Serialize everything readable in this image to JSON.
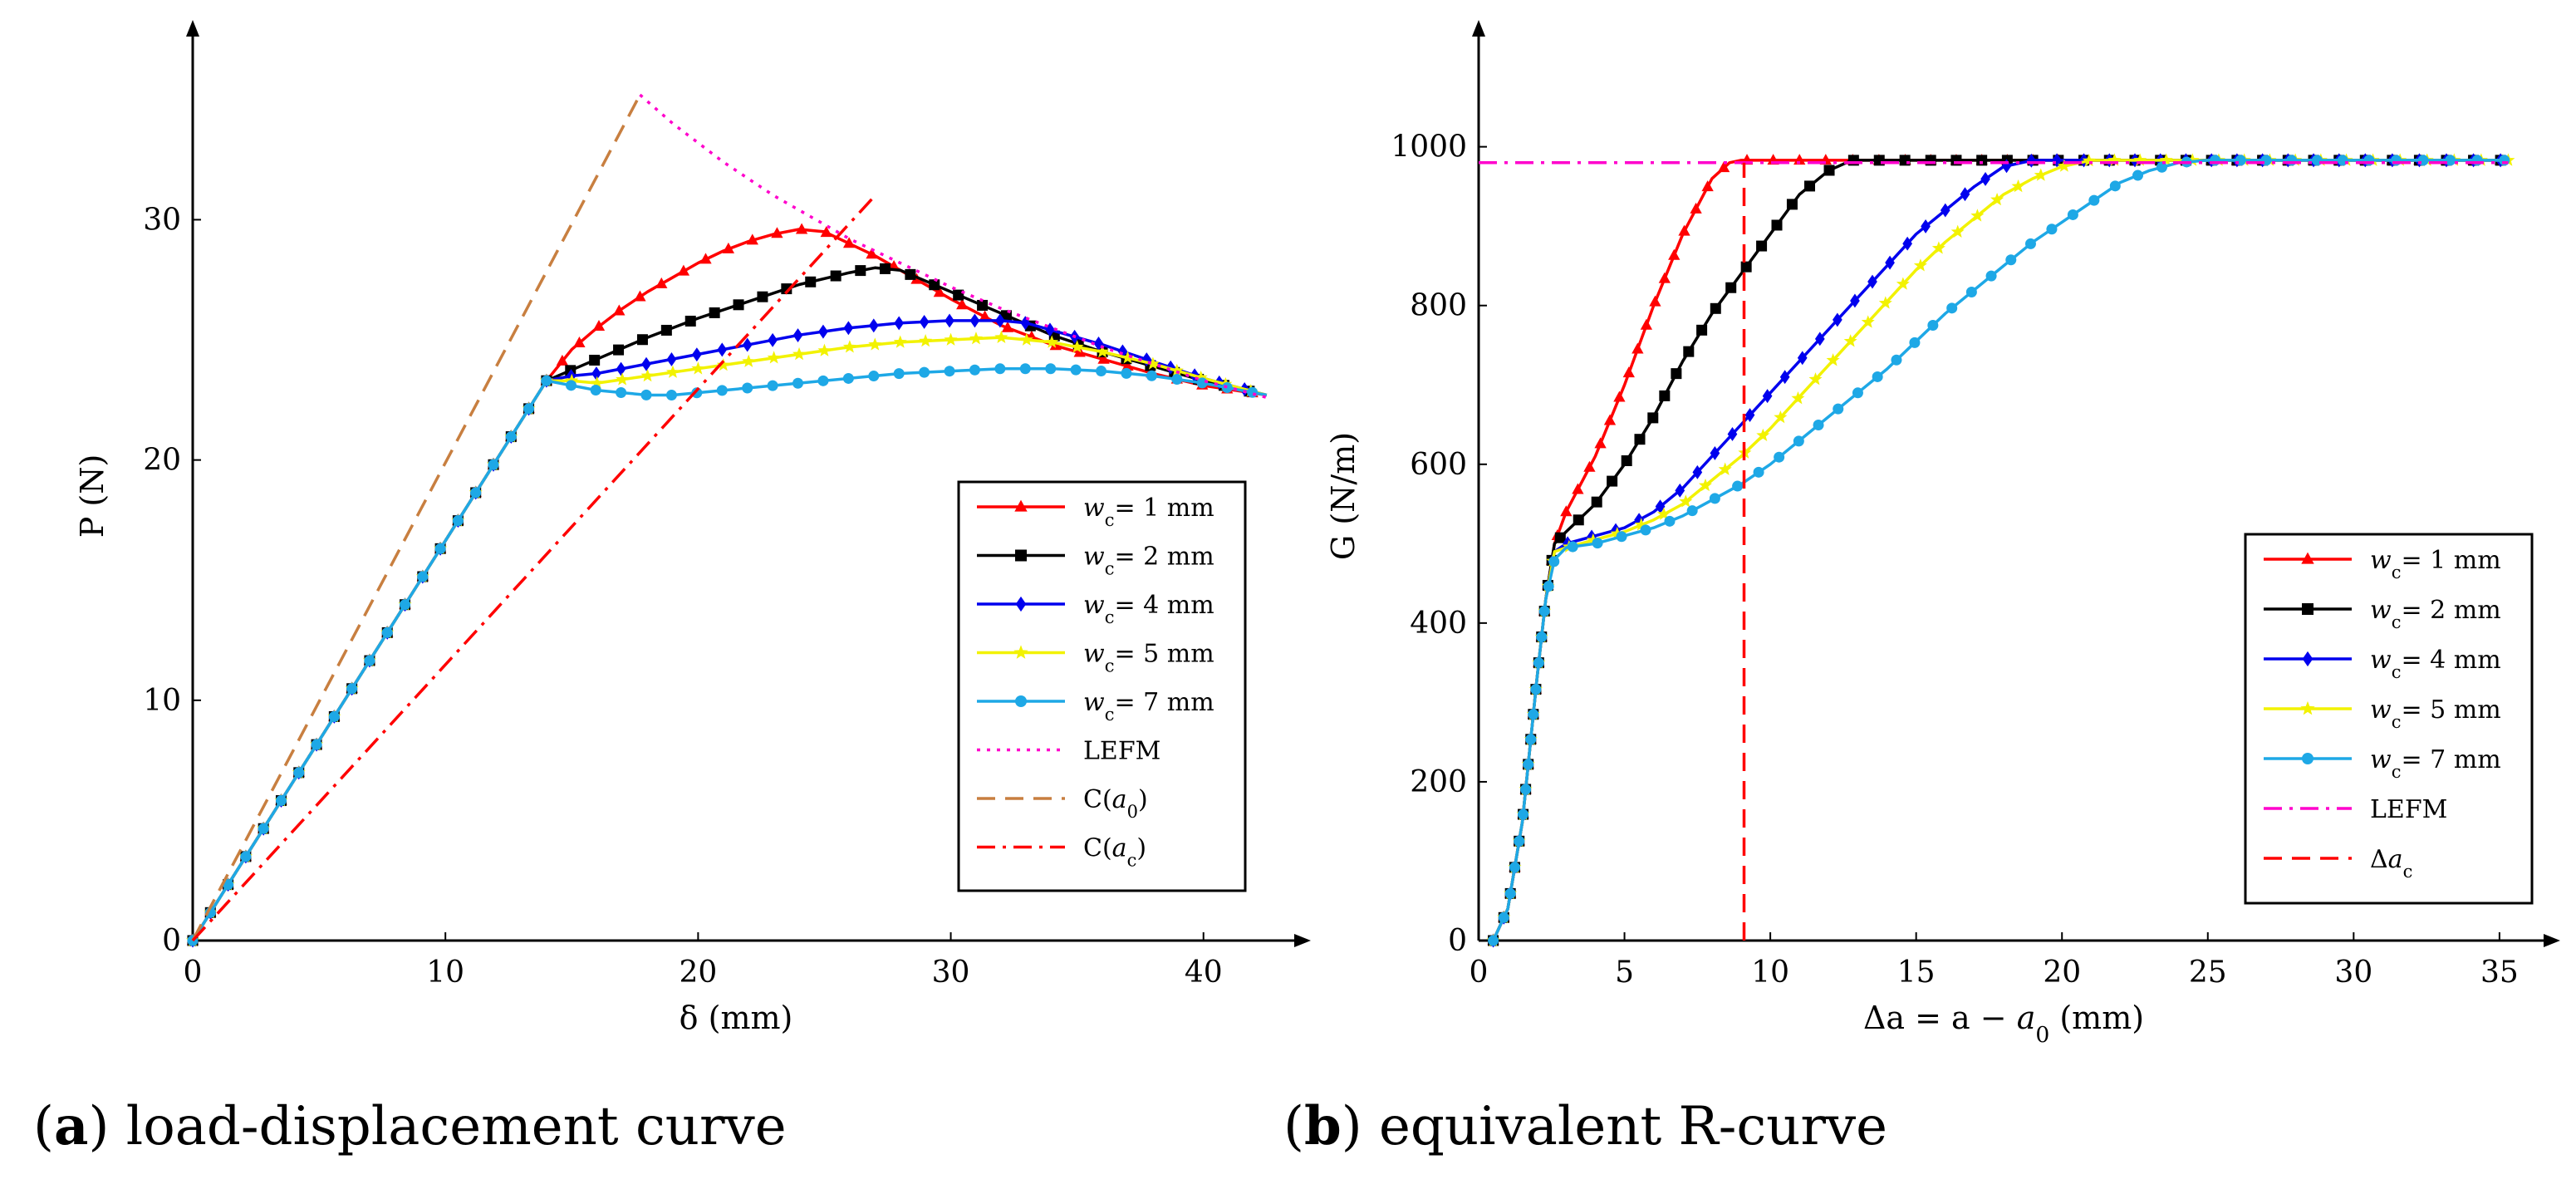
{
  "figure": {
    "captions": [
      {
        "id": "a",
        "text": "load-displacement curve"
      },
      {
        "id": "b",
        "text": "equivalent R-curve"
      }
    ]
  },
  "chart_data": [
    {
      "id": "a",
      "type": "line",
      "xlabel": "δ (mm)",
      "ylabel": "P (N)",
      "xlim": [
        0,
        43
      ],
      "ylim": [
        0,
        37
      ],
      "xticks": [
        0,
        10,
        20,
        30,
        40
      ],
      "yticks": [
        0,
        10,
        20,
        30
      ],
      "grid": false,
      "legend_position": "bottom-right",
      "series": [
        {
          "name": "w_c= 1 mm",
          "color": "#ff0000",
          "marker": "triangle",
          "style": "solid",
          "x": [
            0,
            14,
            15,
            16,
            17,
            18,
            19,
            20,
            21,
            22,
            23,
            24,
            25,
            26,
            27,
            28,
            30,
            32,
            34,
            36,
            38,
            40,
            42.5
          ],
          "y": [
            0,
            23.3,
            24.6,
            25.5,
            26.3,
            27.0,
            27.6,
            28.2,
            28.7,
            29.1,
            29.4,
            29.6,
            29.5,
            29.0,
            28.5,
            27.9,
            26.7,
            25.6,
            24.8,
            24.2,
            23.6,
            23.1,
            22.7
          ]
        },
        {
          "name": "w_c= 2 mm",
          "color": "#000000",
          "marker": "square",
          "style": "solid",
          "x": [
            0,
            14,
            16,
            18,
            20,
            22,
            24,
            26,
            27,
            28,
            30,
            32,
            34,
            36,
            38,
            40,
            42.5
          ],
          "y": [
            0,
            23.3,
            24.2,
            25.1,
            25.9,
            26.6,
            27.3,
            27.8,
            28.0,
            27.9,
            27.0,
            26.1,
            25.2,
            24.5,
            23.9,
            23.3,
            22.7
          ]
        },
        {
          "name": "w_c= 4 mm",
          "color": "#0000ee",
          "marker": "diamond",
          "style": "solid",
          "x": [
            0,
            14,
            15,
            16,
            18,
            20,
            22,
            24,
            26,
            28,
            30,
            32,
            33,
            34,
            36,
            38,
            40,
            42.5
          ],
          "y": [
            0,
            23.3,
            23.5,
            23.6,
            24.0,
            24.4,
            24.8,
            25.2,
            25.5,
            25.7,
            25.8,
            25.8,
            25.7,
            25.4,
            24.8,
            24.1,
            23.4,
            22.7
          ]
        },
        {
          "name": "w_c= 5 mm",
          "color": "#f2f200",
          "marker": "star",
          "style": "solid",
          "x": [
            0,
            14,
            15,
            16,
            18,
            20,
            22,
            24,
            26,
            28,
            30,
            32,
            34,
            36,
            38,
            40,
            42.5
          ],
          "y": [
            0,
            23.3,
            23.3,
            23.2,
            23.5,
            23.8,
            24.1,
            24.4,
            24.7,
            24.9,
            25.0,
            25.1,
            24.9,
            24.5,
            24.0,
            23.4,
            22.7
          ]
        },
        {
          "name": "w_c= 7 mm",
          "color": "#1ea8e6",
          "marker": "circle",
          "style": "solid",
          "x": [
            0,
            14,
            15,
            16,
            17,
            18,
            19,
            20,
            22,
            24,
            26,
            28,
            30,
            32,
            34,
            36,
            38,
            40,
            42.5
          ],
          "y": [
            0,
            23.3,
            23.1,
            22.9,
            22.8,
            22.7,
            22.7,
            22.8,
            23.0,
            23.2,
            23.4,
            23.6,
            23.7,
            23.8,
            23.8,
            23.7,
            23.5,
            23.2,
            22.7
          ]
        },
        {
          "name": "LEFM",
          "color": "#ff00cc",
          "marker": "none",
          "style": "dotted",
          "x": [
            17.7,
            19,
            20,
            21,
            22,
            23,
            24,
            25,
            26,
            28,
            30,
            32,
            34,
            36,
            38,
            40,
            42.5
          ],
          "y": [
            35.2,
            34.0,
            33.2,
            32.4,
            31.7,
            31.0,
            30.4,
            29.8,
            29.2,
            28.2,
            27.2,
            26.3,
            25.5,
            24.7,
            24.0,
            23.3,
            22.6
          ]
        },
        {
          "name": "C(a_0)",
          "color": "#c87f40",
          "marker": "none",
          "style": "dashed",
          "x": [
            0,
            17.7
          ],
          "y": [
            0,
            35.2
          ]
        },
        {
          "name": "C(a_c)",
          "color": "#ff0000",
          "marker": "none",
          "style": "dashdot",
          "x": [
            0,
            27
          ],
          "y": [
            0,
            31
          ]
        }
      ]
    },
    {
      "id": "b",
      "type": "line",
      "xlabel": "Δa = a − a_0 (mm)",
      "ylabel": "G (N/m)",
      "xlim": [
        0,
        36
      ],
      "ylim": [
        0,
        1120
      ],
      "xticks": [
        0,
        5,
        10,
        15,
        20,
        25,
        30,
        35
      ],
      "yticks": [
        0,
        200,
        400,
        600,
        800,
        1000
      ],
      "grid": false,
      "legend_position": "bottom-right",
      "series": [
        {
          "name": "w_c= 1 mm",
          "color": "#ff0000",
          "marker": "triangle",
          "style": "solid",
          "x": [
            0.5,
            1,
            1.5,
            2,
            2.3,
            2.6,
            3,
            4,
            5,
            6,
            7,
            8,
            8.6,
            9,
            10,
            12,
            15,
            20,
            25,
            30,
            35.3
          ],
          "y": [
            0,
            40,
            150,
            330,
            430,
            500,
            540,
            610,
            700,
            800,
            890,
            960,
            980,
            983,
            983,
            983,
            983,
            983,
            983,
            983,
            983
          ]
        },
        {
          "name": "w_c= 2 mm",
          "color": "#000000",
          "marker": "square",
          "style": "solid",
          "x": [
            0.5,
            1,
            1.5,
            2,
            2.3,
            2.6,
            3,
            4,
            5,
            6,
            7,
            8,
            9,
            10,
            11,
            12,
            12.8,
            15,
            20,
            25,
            30,
            35.3
          ],
          "y": [
            0,
            40,
            150,
            330,
            430,
            500,
            515,
            550,
            600,
            660,
            730,
            790,
            840,
            890,
            940,
            970,
            983,
            983,
            983,
            983,
            983,
            983
          ]
        },
        {
          "name": "w_c= 4 mm",
          "color": "#0000ee",
          "marker": "diamond",
          "style": "solid",
          "x": [
            0.5,
            1,
            1.5,
            2,
            2.3,
            2.6,
            3,
            4,
            5,
            6,
            7,
            8,
            9,
            10,
            11,
            12,
            13,
            14,
            15,
            16,
            17,
            18,
            19,
            20,
            25,
            30,
            35.3
          ],
          "y": [
            0,
            40,
            150,
            330,
            430,
            490,
            500,
            510,
            520,
            540,
            570,
            610,
            650,
            690,
            730,
            770,
            810,
            850,
            890,
            920,
            950,
            975,
            983,
            983,
            983,
            983,
            983
          ]
        },
        {
          "name": "w_c= 5 mm",
          "color": "#f2f200",
          "marker": "star",
          "style": "solid",
          "x": [
            0.5,
            1,
            1.5,
            2,
            2.3,
            2.6,
            3,
            4,
            5,
            6,
            7,
            8,
            9,
            10,
            11,
            12,
            13,
            14,
            15,
            16,
            17,
            18,
            19,
            20,
            21,
            22,
            25,
            30,
            35.3
          ],
          "y": [
            0,
            40,
            150,
            330,
            430,
            490,
            495,
            505,
            515,
            530,
            550,
            580,
            610,
            645,
            685,
            725,
            765,
            805,
            845,
            880,
            910,
            940,
            960,
            975,
            983,
            983,
            983,
            983,
            983
          ]
        },
        {
          "name": "w_c= 7 mm",
          "color": "#1ea8e6",
          "marker": "circle",
          "style": "solid",
          "x": [
            0.5,
            1,
            1.5,
            2,
            2.3,
            2.6,
            3,
            4,
            5,
            6,
            7,
            8,
            9,
            10,
            11,
            12,
            13,
            14,
            15,
            16,
            17,
            18,
            19,
            20,
            21,
            22,
            23,
            24,
            25,
            30,
            35.3
          ],
          "y": [
            0,
            40,
            150,
            330,
            430,
            480,
            495,
            500,
            510,
            520,
            535,
            555,
            575,
            600,
            630,
            660,
            690,
            720,
            755,
            790,
            820,
            850,
            880,
            905,
            930,
            955,
            970,
            980,
            983,
            983,
            983
          ]
        },
        {
          "name": "LEFM",
          "color": "#ff00cc",
          "marker": "none",
          "style": "dashdot",
          "x": [
            0,
            35.3
          ],
          "y": [
            980,
            980
          ]
        },
        {
          "name": "Δa_c",
          "color": "#ff0000",
          "marker": "none",
          "style": "dashed",
          "x": [
            9.1,
            9.1
          ],
          "y": [
            0,
            980
          ]
        }
      ]
    }
  ]
}
